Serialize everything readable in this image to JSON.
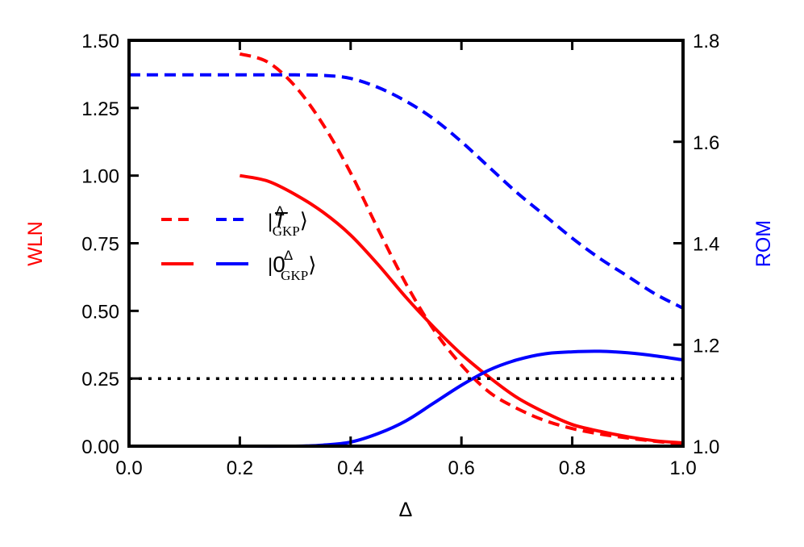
{
  "chart_data": {
    "type": "line",
    "title": "",
    "xlabel": "Δ",
    "ylabel_left": "WLN",
    "ylabel_right": "ROM",
    "xlim": [
      0.0,
      1.0
    ],
    "ylim_left": [
      0.0,
      1.5
    ],
    "ylim_right": [
      1.0,
      1.8
    ],
    "x_ticks": [
      "0.0",
      "0.2",
      "0.4",
      "0.6",
      "0.8",
      "1.0"
    ],
    "y_left_ticks": [
      "0.00",
      "0.25",
      "0.50",
      "0.75",
      "1.00",
      "1.25",
      "1.50"
    ],
    "y_right_ticks": [
      "1.0",
      "1.2",
      "1.4",
      "1.6",
      "1.8"
    ],
    "grid": false,
    "legend_position": "center-left",
    "colors": {
      "wln": "#ff0000",
      "rom": "#0000ff",
      "reference": "#000000"
    },
    "legend": [
      {
        "label_main": "T",
        "label_sup": "Δ",
        "label_sub": "GKP",
        "style": "dashed",
        "text": "|T^Δ_GKP⟩"
      },
      {
        "label_main": "0",
        "label_sup": "Δ",
        "label_sub": "GKP",
        "style": "solid",
        "text": "|0^Δ_GKP⟩"
      }
    ],
    "series": [
      {
        "name": "WLN |T_GKP^Δ⟩",
        "axis": "left",
        "color": "#ff0000",
        "style": "dashed",
        "x": [
          0.2,
          0.25,
          0.3,
          0.35,
          0.4,
          0.45,
          0.5,
          0.55,
          0.6,
          0.65,
          0.7,
          0.75,
          0.8,
          0.85,
          0.9,
          0.95,
          1.0
        ],
        "values": [
          1.45,
          1.42,
          1.33,
          1.19,
          1.01,
          0.8,
          0.6,
          0.43,
          0.3,
          0.2,
          0.14,
          0.095,
          0.065,
          0.045,
          0.03,
          0.018,
          0.008
        ]
      },
      {
        "name": "WLN |0_GKP^Δ⟩",
        "axis": "left",
        "color": "#ff0000",
        "style": "solid",
        "x": [
          0.2,
          0.25,
          0.3,
          0.35,
          0.4,
          0.45,
          0.5,
          0.55,
          0.6,
          0.65,
          0.7,
          0.75,
          0.8,
          0.85,
          0.9,
          0.95,
          1.0
        ],
        "values": [
          1.0,
          0.98,
          0.93,
          0.865,
          0.78,
          0.67,
          0.55,
          0.44,
          0.34,
          0.255,
          0.18,
          0.125,
          0.08,
          0.055,
          0.035,
          0.02,
          0.012
        ]
      },
      {
        "name": "ROM |T_GKP^Δ⟩",
        "axis": "right",
        "color": "#0000ff",
        "style": "dashed",
        "x": [
          0.0,
          0.1,
          0.2,
          0.3,
          0.35,
          0.4,
          0.45,
          0.5,
          0.55,
          0.6,
          0.65,
          0.7,
          0.75,
          0.8,
          0.85,
          0.9,
          0.95,
          1.0
        ],
        "values": [
          1.732,
          1.732,
          1.732,
          1.732,
          1.731,
          1.725,
          1.707,
          1.68,
          1.645,
          1.6,
          1.55,
          1.5,
          1.455,
          1.41,
          1.37,
          1.335,
          1.3,
          1.272
        ]
      },
      {
        "name": "ROM |0_GKP^Δ⟩",
        "axis": "right",
        "color": "#0000ff",
        "style": "solid",
        "x": [
          0.2,
          0.3,
          0.35,
          0.4,
          0.45,
          0.5,
          0.55,
          0.6,
          0.65,
          0.7,
          0.75,
          0.8,
          0.85,
          0.9,
          0.95,
          1.0
        ],
        "values": [
          1.0,
          1.0,
          1.002,
          1.008,
          1.025,
          1.05,
          1.085,
          1.12,
          1.15,
          1.17,
          1.182,
          1.186,
          1.187,
          1.184,
          1.178,
          1.17
        ]
      },
      {
        "name": "reference 0.25",
        "axis": "left",
        "color": "#000000",
        "style": "dotted",
        "x": [
          0.0,
          1.0
        ],
        "values": [
          0.25,
          0.25
        ]
      }
    ]
  }
}
